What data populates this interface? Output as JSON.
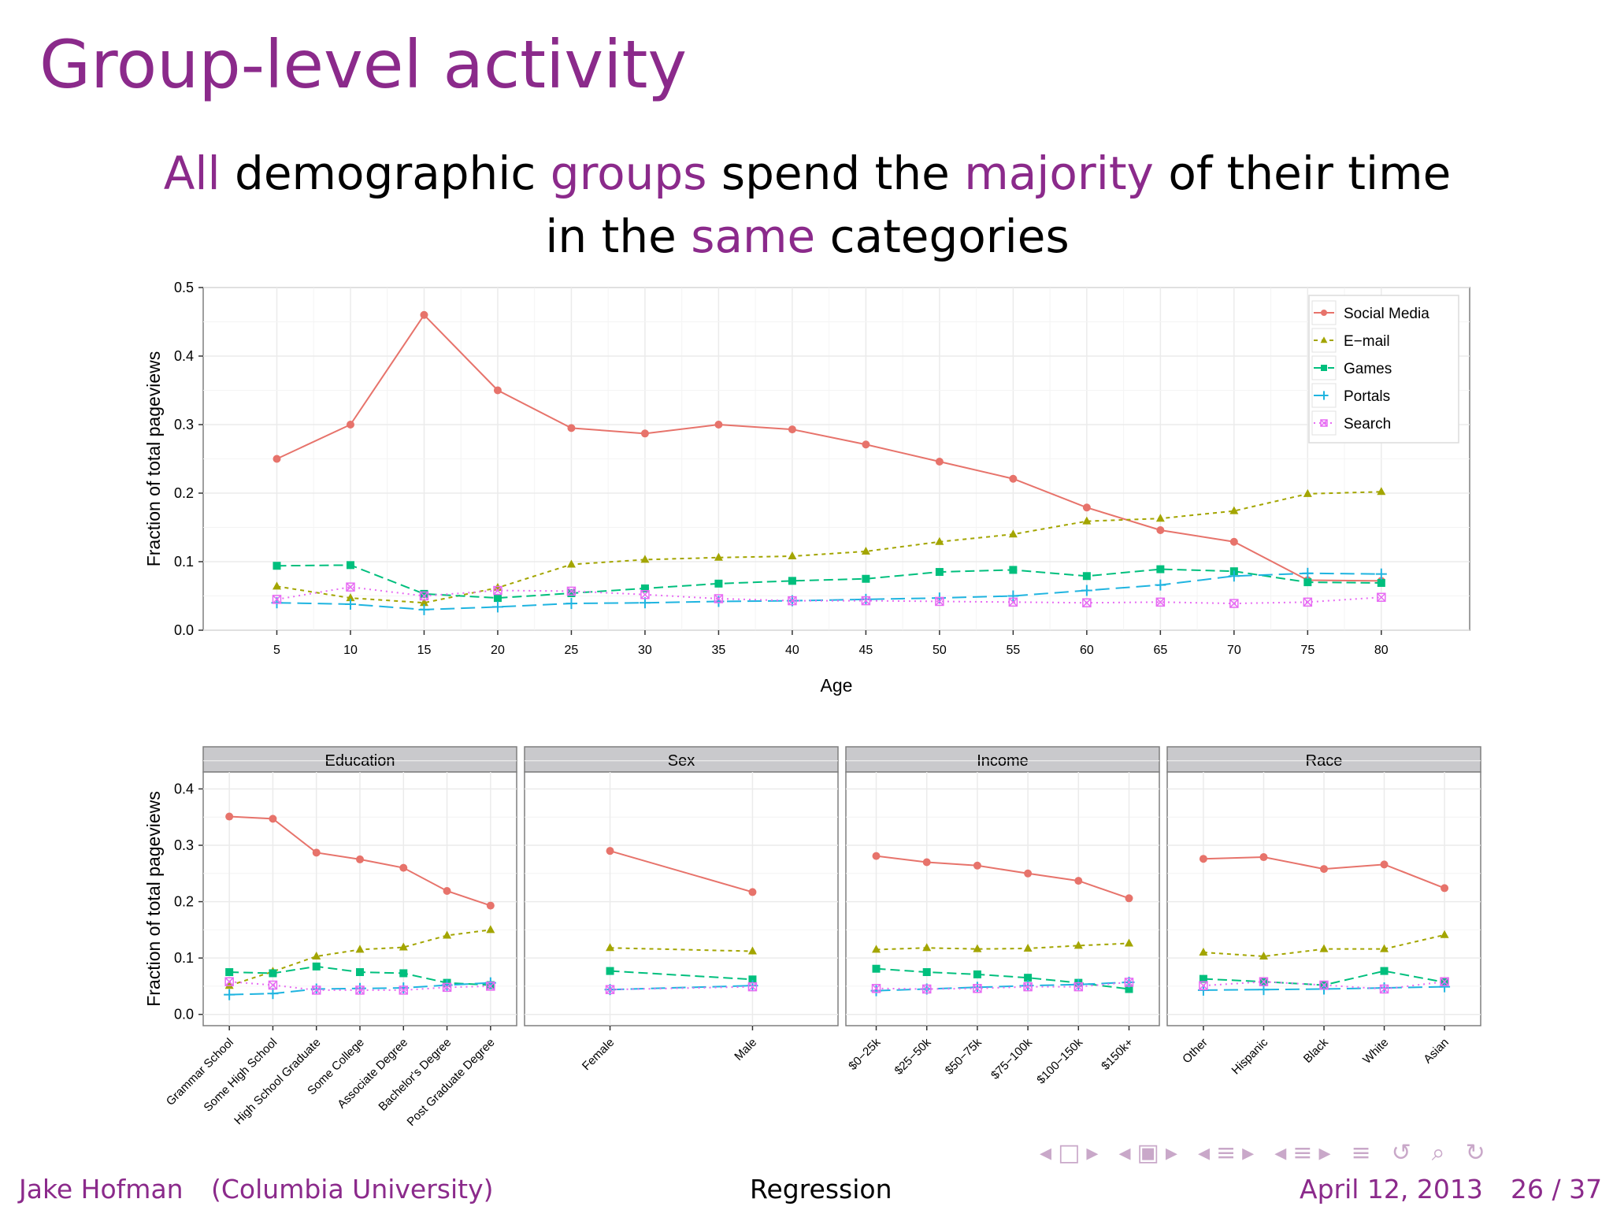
{
  "slide": {
    "title": "Group-level activity",
    "subtitle_parts": [
      {
        "text": "All",
        "hl": true
      },
      {
        "text": " demographic ",
        "hl": false
      },
      {
        "text": "groups",
        "hl": true
      },
      {
        "text": " spend the ",
        "hl": false
      },
      {
        "text": "majority",
        "hl": true
      },
      {
        "text": " of their time in the ",
        "hl": false
      },
      {
        "text": "same",
        "hl": true
      },
      {
        "text": " categories",
        "hl": false
      }
    ],
    "accent_color": "#8b2a8b"
  },
  "footer": {
    "author": "Jake Hofman",
    "affiliation": "(Columbia University)",
    "topic": "Regression",
    "date": "April 12, 2013",
    "page": "26 / 37"
  },
  "nav_icons": [
    "nav-prev-arrow-icon",
    "frame-icon",
    "nav-next-arrow-icon",
    "nav-prev-arrow-icon",
    "section-icon",
    "nav-next-arrow-icon",
    "nav-prev-arrow-icon",
    "subsection-icon",
    "nav-next-arrow-icon",
    "nav-prev-arrow-icon",
    "subsection-icon",
    "nav-next-arrow-icon",
    "outline-icon",
    "back-icon",
    "search-icon",
    "forward-icon"
  ],
  "series_styles": [
    {
      "name": "Social Media",
      "color": "#e7736b",
      "marker": "circle",
      "dash": ""
    },
    {
      "name": "E−mail",
      "color": "#a3a500",
      "marker": "triangle",
      "dash": "5,5"
    },
    {
      "name": "Games",
      "color": "#00bf7d",
      "marker": "square",
      "dash": "12,6"
    },
    {
      "name": "Portals",
      "color": "#1fb4e0",
      "marker": "plus",
      "dash": "18,8"
    },
    {
      "name": "Search",
      "color": "#e76bf3",
      "marker": "boxx",
      "dash": "2,5"
    }
  ],
  "chart_data": [
    {
      "type": "line",
      "title": "",
      "xlabel": "Age",
      "ylabel": "Fraction of total pageviews",
      "x": [
        5,
        10,
        15,
        20,
        25,
        30,
        35,
        40,
        45,
        50,
        55,
        60,
        65,
        70,
        75,
        80
      ],
      "xlim": [
        0,
        86
      ],
      "ylim": [
        0,
        0.5
      ],
      "yticks": [
        "0.0",
        "0.1",
        "0.2",
        "0.3",
        "0.4",
        "0.5"
      ],
      "grid": true,
      "legend": "top-right",
      "series": [
        {
          "name": "Social Media",
          "values": [
            0.25,
            0.3,
            0.46,
            0.35,
            0.295,
            0.287,
            0.3,
            0.293,
            0.271,
            0.246,
            0.221,
            0.179,
            0.146,
            0.129,
            0.073,
            0.072
          ]
        },
        {
          "name": "E−mail",
          "values": [
            0.064,
            0.047,
            0.04,
            0.062,
            0.096,
            0.103,
            0.106,
            0.108,
            0.115,
            0.129,
            0.14,
            0.159,
            0.163,
            0.174,
            0.199,
            0.202
          ]
        },
        {
          "name": "Games",
          "values": [
            0.094,
            0.095,
            0.053,
            0.047,
            0.054,
            0.061,
            0.068,
            0.072,
            0.075,
            0.085,
            0.088,
            0.079,
            0.089,
            0.086,
            0.07,
            0.069
          ]
        },
        {
          "name": "Portals",
          "values": [
            0.04,
            0.038,
            0.03,
            0.034,
            0.039,
            0.04,
            0.042,
            0.043,
            0.045,
            0.047,
            0.05,
            0.058,
            0.066,
            0.079,
            0.083,
            0.082
          ]
        },
        {
          "name": "Search",
          "values": [
            0.045,
            0.063,
            0.05,
            0.058,
            0.057,
            0.052,
            0.046,
            0.043,
            0.043,
            0.042,
            0.041,
            0.04,
            0.041,
            0.039,
            0.041,
            0.048
          ]
        }
      ]
    },
    {
      "type": "line",
      "title": "",
      "ylabel": "Fraction of total pageviews",
      "ylim": [
        -0.02,
        0.43
      ],
      "yticks": [
        "0.0",
        "0.1",
        "0.2",
        "0.3",
        "0.4"
      ],
      "grid": true,
      "facets": [
        {
          "label": "Education",
          "categories": [
            "Grammar School",
            "Some High School",
            "High School Graduate",
            "Some College",
            "Associate Degree",
            "Bachelor's Degree",
            "Post Graduate Degree"
          ],
          "series": [
            {
              "name": "Social Media",
              "values": [
                0.351,
                0.347,
                0.287,
                0.275,
                0.26,
                0.219,
                0.193
              ]
            },
            {
              "name": "E−mail",
              "values": [
                0.051,
                0.076,
                0.103,
                0.115,
                0.119,
                0.14,
                0.15
              ]
            },
            {
              "name": "Games",
              "values": [
                0.075,
                0.073,
                0.085,
                0.075,
                0.073,
                0.056,
                0.052
              ]
            },
            {
              "name": "Portals",
              "values": [
                0.035,
                0.037,
                0.045,
                0.046,
                0.047,
                0.052,
                0.056
              ]
            },
            {
              "name": "Search",
              "values": [
                0.058,
                0.052,
                0.043,
                0.043,
                0.043,
                0.048,
                0.05
              ]
            }
          ]
        },
        {
          "label": "Sex",
          "categories": [
            "Female",
            "Male"
          ],
          "series": [
            {
              "name": "Social Media",
              "values": [
                0.29,
                0.217
              ]
            },
            {
              "name": "E−mail",
              "values": [
                0.118,
                0.112
              ]
            },
            {
              "name": "Games",
              "values": [
                0.077,
                0.062
              ]
            },
            {
              "name": "Portals",
              "values": [
                0.044,
                0.051
              ]
            },
            {
              "name": "Search",
              "values": [
                0.044,
                0.049
              ]
            }
          ]
        },
        {
          "label": "Income",
          "categories": [
            "$0−25k",
            "$25−50k",
            "$50−75k",
            "$75−100k",
            "$100−150k",
            "$150k+"
          ],
          "series": [
            {
              "name": "Social Media",
              "values": [
                0.281,
                0.27,
                0.264,
                0.25,
                0.237,
                0.206
              ]
            },
            {
              "name": "E−mail",
              "values": [
                0.115,
                0.118,
                0.116,
                0.117,
                0.122,
                0.126
              ]
            },
            {
              "name": "Games",
              "values": [
                0.081,
                0.075,
                0.071,
                0.065,
                0.056,
                0.045
              ]
            },
            {
              "name": "Portals",
              "values": [
                0.042,
                0.045,
                0.048,
                0.051,
                0.053,
                0.057
              ]
            },
            {
              "name": "Search",
              "values": [
                0.046,
                0.045,
                0.046,
                0.049,
                0.049,
                0.057
              ]
            }
          ]
        },
        {
          "label": "Race",
          "categories": [
            "Other",
            "Hispanic",
            "Black",
            "White",
            "Asian"
          ],
          "series": [
            {
              "name": "Social Media",
              "values": [
                0.276,
                0.279,
                0.258,
                0.266,
                0.224
              ]
            },
            {
              "name": "E−mail",
              "values": [
                0.11,
                0.103,
                0.116,
                0.116,
                0.141
              ]
            },
            {
              "name": "Games",
              "values": [
                0.063,
                0.058,
                0.052,
                0.077,
                0.057
              ]
            },
            {
              "name": "Portals",
              "values": [
                0.043,
                0.044,
                0.045,
                0.047,
                0.049
              ]
            },
            {
              "name": "Search",
              "values": [
                0.051,
                0.058,
                0.052,
                0.045,
                0.058
              ]
            }
          ]
        }
      ]
    }
  ]
}
